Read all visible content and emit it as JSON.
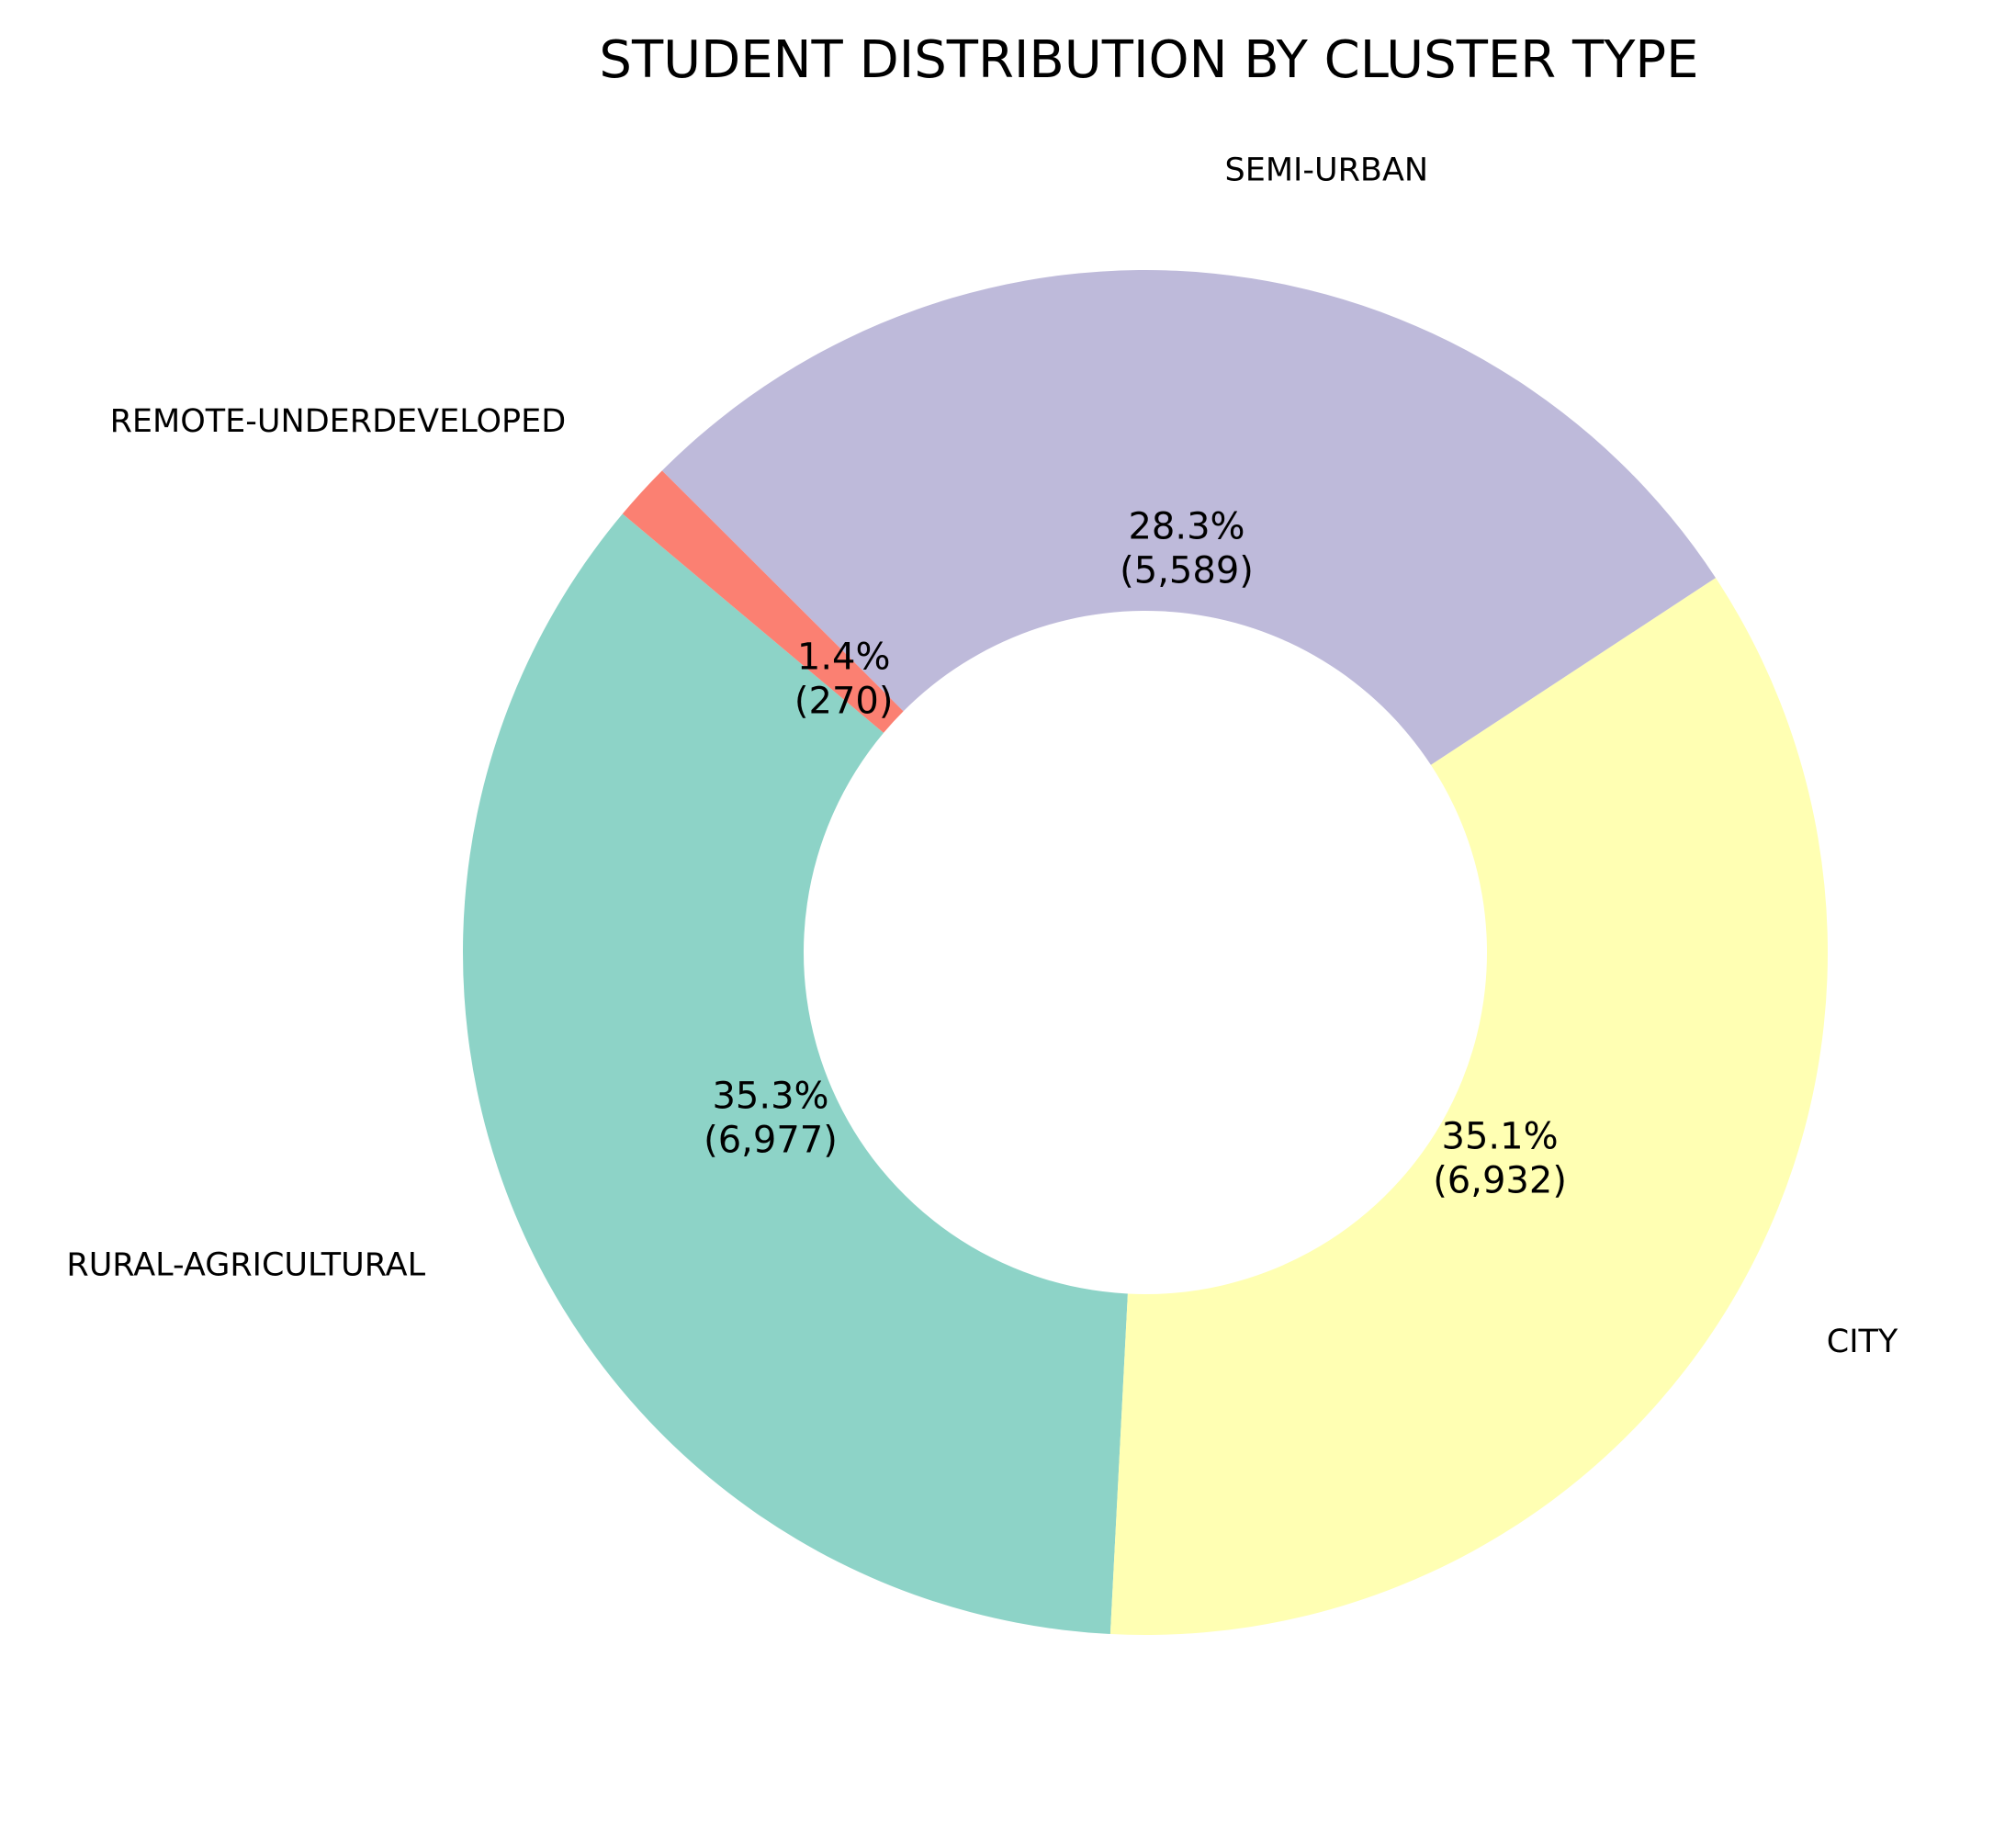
{
  "chart_data": {
    "type": "pie",
    "style": "donut",
    "title": "STUDENT DISTRIBUTION BY CLUSTER TYPE",
    "start_angle_deg": 140,
    "direction": "counterclockwise",
    "slices": [
      {
        "label": "RURAL-AGRICULTURAL",
        "value": 6977,
        "percent_text": "35.3%",
        "count_text": "(6,977)",
        "color": "#8dd3c7"
      },
      {
        "label": "CITY",
        "value": 6932,
        "percent_text": "35.1%",
        "count_text": "(6,932)",
        "color": "#ffffb3"
      },
      {
        "label": "SEMI-URBAN",
        "value": 5589,
        "percent_text": "28.3%",
        "count_text": "(5,589)",
        "color": "#bebada"
      },
      {
        "label": "REMOTE-UNDERDEVELOPED",
        "value": 270,
        "percent_text": "1.4%",
        "count_text": "(270)",
        "color": "#fb8072"
      }
    ],
    "legend": "none"
  }
}
